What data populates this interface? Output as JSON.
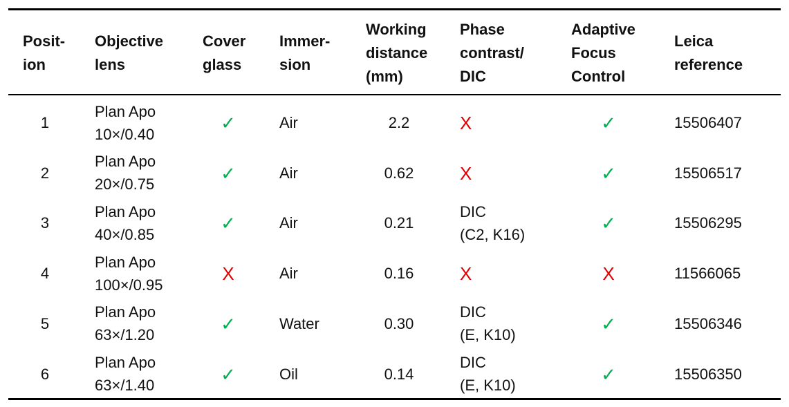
{
  "table": {
    "header": [
      {
        "lines": [
          "Posit-",
          "ion"
        ]
      },
      {
        "lines": [
          "Objective",
          "lens"
        ]
      },
      {
        "lines": [
          "Cover",
          "glass"
        ]
      },
      {
        "lines": [
          "Immer-",
          "sion"
        ]
      },
      {
        "lines": [
          "Working",
          "distance",
          "(mm)"
        ]
      },
      {
        "lines": [
          "Phase",
          "contrast/",
          "DIC"
        ]
      },
      {
        "lines": [
          "Adaptive",
          "Focus",
          "Control"
        ]
      },
      {
        "lines": [
          "Leica",
          "reference"
        ]
      }
    ],
    "rows": [
      [
        {
          "lines": [
            "1"
          ]
        },
        {
          "lines": [
            "Plan Apo",
            "10×/0.40"
          ]
        },
        {
          "lines": [
            "✓"
          ],
          "color": "#00b050"
        },
        {
          "lines": [
            "Air"
          ]
        },
        {
          "lines": [
            "2.2"
          ]
        },
        {
          "lines": [
            "X"
          ],
          "color": "#e00000"
        },
        {
          "lines": [
            "✓"
          ],
          "color": "#00b050"
        },
        {
          "lines": [
            "15506407"
          ]
        }
      ],
      [
        {
          "lines": [
            "2"
          ]
        },
        {
          "lines": [
            "Plan Apo",
            "20×/0.75"
          ]
        },
        {
          "lines": [
            "✓"
          ],
          "color": "#00b050"
        },
        {
          "lines": [
            "Air"
          ]
        },
        {
          "lines": [
            "0.62"
          ]
        },
        {
          "lines": [
            "X"
          ],
          "color": "#e00000"
        },
        {
          "lines": [
            "✓"
          ],
          "color": "#00b050"
        },
        {
          "lines": [
            "15506517"
          ]
        }
      ],
      [
        {
          "lines": [
            "3"
          ]
        },
        {
          "lines": [
            "Plan Apo",
            "40×/0.85"
          ]
        },
        {
          "lines": [
            "✓"
          ],
          "color": "#00b050"
        },
        {
          "lines": [
            "Air"
          ]
        },
        {
          "lines": [
            "0.21"
          ]
        },
        {
          "lines": [
            "DIC",
            "(C2, K16)"
          ]
        },
        {
          "lines": [
            "✓"
          ],
          "color": "#00b050"
        },
        {
          "lines": [
            "15506295"
          ]
        }
      ],
      [
        {
          "lines": [
            "4"
          ]
        },
        {
          "lines": [
            "Plan Apo",
            "100×/0.95"
          ]
        },
        {
          "lines": [
            "X"
          ],
          "color": "#e00000"
        },
        {
          "lines": [
            "Air"
          ]
        },
        {
          "lines": [
            "0.16"
          ]
        },
        {
          "lines": [
            "X"
          ],
          "color": "#e00000"
        },
        {
          "lines": [
            "X"
          ],
          "color": "#e00000"
        },
        {
          "lines": [
            "11566065"
          ]
        }
      ],
      [
        {
          "lines": [
            "5"
          ]
        },
        {
          "lines": [
            "Plan Apo",
            "63×/1.20"
          ]
        },
        {
          "lines": [
            "✓"
          ],
          "color": "#00b050"
        },
        {
          "lines": [
            "Water"
          ]
        },
        {
          "lines": [
            "0.30"
          ]
        },
        {
          "lines": [
            "DIC",
            "(E, K10)"
          ]
        },
        {
          "lines": [
            "✓"
          ],
          "color": "#00b050"
        },
        {
          "lines": [
            "15506346"
          ]
        }
      ],
      [
        {
          "lines": [
            "6"
          ]
        },
        {
          "lines": [
            "Plan Apo",
            "63×/1.40"
          ]
        },
        {
          "lines": [
            "✓"
          ],
          "color": "#00b050"
        },
        {
          "lines": [
            "Oil"
          ]
        },
        {
          "lines": [
            "0.14"
          ]
        },
        {
          "lines": [
            "DIC",
            "(E, K10)"
          ]
        },
        {
          "lines": [
            "✓"
          ],
          "color": "#00b050"
        },
        {
          "lines": [
            "15506350"
          ]
        }
      ]
    ]
  }
}
